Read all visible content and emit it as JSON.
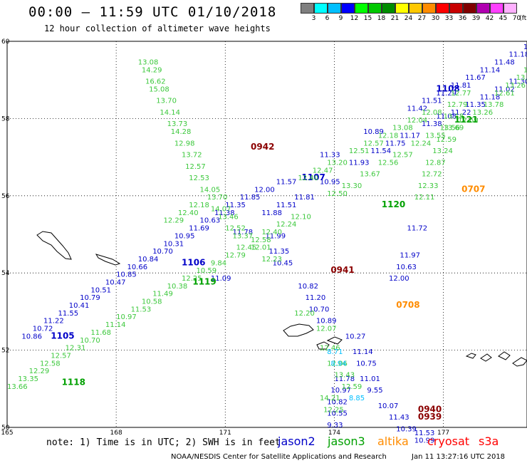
{
  "title": "00:00 – 11:59 UTC 01/10/2018",
  "subtitle": "12 hour collection of altimeter wave heights",
  "legend": {
    "unit": "(ft)",
    "bins": [
      {
        "label": "3",
        "color": "#7f7f7f"
      },
      {
        "label": "6",
        "color": "#00ffff"
      },
      {
        "label": "9",
        "color": "#00bfff"
      },
      {
        "label": "12",
        "color": "#0000ff"
      },
      {
        "label": "15",
        "color": "#00ff00"
      },
      {
        "label": "18",
        "color": "#00c800"
      },
      {
        "label": "21",
        "color": "#008c00"
      },
      {
        "label": "24",
        "color": "#ffff00"
      },
      {
        "label": "27",
        "color": "#ffc800"
      },
      {
        "label": "30",
        "color": "#ff8c00"
      },
      {
        "label": "33",
        "color": "#ff0000"
      },
      {
        "label": "36",
        "color": "#c80000"
      },
      {
        "label": "39",
        "color": "#800000"
      },
      {
        "label": "42",
        "color": "#b000b0"
      },
      {
        "label": "45",
        "color": "#ff40ff"
      },
      {
        "label": "70",
        "color": "#ffb0ff"
      }
    ]
  },
  "map": {
    "lon_range": [
      165,
      179.3
    ],
    "lat_range": [
      50,
      60
    ],
    "lon_ticks": [
      {
        "value": 165,
        "label": "165"
      },
      {
        "value": 168,
        "label": "168"
      },
      {
        "value": 171,
        "label": "171"
      },
      {
        "value": 174,
        "label": "174"
      },
      {
        "value": 177,
        "label": "177"
      }
    ],
    "lat_ticks": [
      {
        "value": 50,
        "label": "50"
      },
      {
        "value": 52,
        "label": "52"
      },
      {
        "value": 54,
        "label": "54"
      },
      {
        "value": 56,
        "label": "56"
      },
      {
        "value": 58,
        "label": "58"
      },
      {
        "value": 60,
        "label": "60"
      }
    ]
  },
  "satellites": {
    "jason2": {
      "label": "jason2",
      "color": "#0000c8"
    },
    "jason3": {
      "label": "jason3",
      "color": "#00a000"
    },
    "altika": {
      "label": "altika",
      "color": "#ff8c00"
    },
    "cryosat": {
      "label": "cryosat",
      "color": "#ff0000"
    },
    "s3a": {
      "label": "s3a",
      "color": "#ff0000"
    }
  },
  "chart_data": {
    "type": "scatter",
    "units": "ft",
    "tracks": [
      {
        "satellite": "jason2",
        "pass_time": "1105",
        "time_label_lonlat": [
          166.2,
          52.3
        ],
        "points": [
          [
            165.4,
            52.3,
            "10.86"
          ],
          [
            165.7,
            52.5,
            "10.72"
          ],
          [
            166.0,
            52.7,
            "11.22"
          ],
          [
            166.4,
            52.9,
            "11.55"
          ],
          [
            166.7,
            53.1,
            "10.41"
          ],
          [
            167.0,
            53.3,
            "10.79"
          ],
          [
            167.3,
            53.5,
            "10.51"
          ],
          [
            167.7,
            53.7,
            "10.47"
          ],
          [
            168.0,
            53.9,
            "10.85"
          ],
          [
            168.3,
            54.1,
            "10.66"
          ],
          [
            168.6,
            54.3,
            "10.84"
          ],
          [
            169.0,
            54.5,
            "10.70"
          ],
          [
            169.3,
            54.7,
            "10.31"
          ],
          [
            169.6,
            54.9,
            "10.95"
          ],
          [
            170.0,
            55.1,
            "11.69"
          ],
          [
            170.3,
            55.3,
            "10.63"
          ],
          [
            170.7,
            55.5,
            "11.38"
          ],
          [
            171.0,
            55.7,
            "11.35"
          ],
          [
            171.4,
            55.9,
            "11.85"
          ],
          [
            171.8,
            56.1,
            "12.00"
          ]
        ]
      },
      {
        "satellite": "jason2",
        "pass_time": "1107",
        "time_label_lonlat": [
          173.1,
          56.4
        ],
        "points": [
          [
            172.4,
            56.3,
            "11.57"
          ],
          [
            173.6,
            57.0,
            "11.33"
          ],
          [
            174.8,
            57.6,
            "10.89"
          ],
          [
            176.0,
            58.2,
            "11.42"
          ],
          [
            176.4,
            58.4,
            "11.51"
          ],
          [
            176.8,
            58.6,
            "11.29"
          ],
          [
            177.2,
            58.8,
            "11.81"
          ],
          [
            177.6,
            59.0,
            "11.67"
          ],
          [
            178.0,
            59.2,
            "11.14"
          ],
          [
            178.4,
            59.4,
            "11.48"
          ],
          [
            178.8,
            59.6,
            "11.18"
          ],
          [
            179.2,
            59.8,
            "11.77"
          ]
        ]
      },
      {
        "satellite": "jason2",
        "pass_time": "1106",
        "time_label_lonlat": [
          169.8,
          54.2
        ],
        "points": [
          [
            170.6,
            53.8,
            "11.09"
          ],
          [
            171.2,
            55.0,
            "11.78"
          ],
          [
            172.0,
            55.5,
            "11.88"
          ],
          [
            172.4,
            55.7,
            "11.51"
          ],
          [
            172.9,
            55.9,
            "11.81"
          ],
          [
            173.6,
            56.3,
            "10.95"
          ],
          [
            174.4,
            56.8,
            "11.93"
          ],
          [
            175.0,
            57.1,
            "11.54"
          ],
          [
            175.4,
            57.3,
            "11.75"
          ],
          [
            175.8,
            57.5,
            "11.17"
          ],
          [
            176.4,
            57.8,
            "11.38"
          ],
          [
            176.8,
            58.0,
            "11.08"
          ],
          [
            177.2,
            58.1,
            "11.22"
          ],
          [
            177.6,
            58.3,
            "11.35"
          ],
          [
            178.0,
            58.5,
            "11.18"
          ],
          [
            178.4,
            58.7,
            "11.02"
          ],
          [
            178.8,
            58.9,
            "11.30"
          ]
        ]
      },
      {
        "satellite": "jason2",
        "pass_time": "1108",
        "time_label_lonlat": [
          176.8,
          58.7
        ],
        "points": [
          [
            172.1,
            54.9,
            "11.99"
          ],
          [
            172.2,
            54.5,
            "11.35"
          ],
          [
            172.3,
            54.2,
            "10.45"
          ],
          [
            173.0,
            53.6,
            "10.82"
          ],
          [
            173.2,
            53.3,
            "11.20"
          ],
          [
            173.3,
            53.0,
            "10.70"
          ],
          [
            173.5,
            52.7,
            "10.89"
          ],
          [
            174.3,
            52.3,
            "10.27"
          ],
          [
            174.5,
            51.9,
            "11.14"
          ],
          [
            174.6,
            51.6,
            "10.75"
          ],
          [
            174.7,
            51.2,
            "11.01"
          ],
          [
            174.9,
            50.9,
            "9.55"
          ],
          [
            175.2,
            50.5,
            "10.07"
          ],
          [
            175.5,
            50.2,
            "11.43"
          ],
          [
            175.7,
            49.9,
            "10.39"
          ]
        ]
      },
      {
        "satellite": "jason2",
        "pass_time": "",
        "time_label_lonlat": null,
        "points": [
          [
            174.0,
            51.2,
            "11.78"
          ],
          [
            173.9,
            50.9,
            "10.97"
          ],
          [
            173.8,
            50.6,
            "10.82"
          ],
          [
            173.8,
            50.3,
            "10.55"
          ],
          [
            173.8,
            50.0,
            "9.33"
          ],
          [
            176.2,
            49.8,
            "11.53"
          ],
          [
            176.2,
            49.6,
            "10.99"
          ],
          [
            175.5,
            53.8,
            "12.00"
          ],
          [
            175.7,
            54.1,
            "10.63"
          ],
          [
            175.8,
            54.4,
            "11.97"
          ],
          [
            176.0,
            55.1,
            "11.72"
          ]
        ]
      },
      {
        "satellite": "jason3",
        "pass_time": "1119",
        "time_label_lonlat": [
          170.1,
          53.7
        ],
        "points": [
          [
            165.0,
            51.0,
            "13.66"
          ],
          [
            165.3,
            51.2,
            "13.35"
          ],
          [
            165.6,
            51.4,
            "12.29"
          ],
          [
            165.9,
            51.6,
            "12.58"
          ],
          [
            166.2,
            51.8,
            "12.57"
          ],
          [
            166.6,
            52.0,
            "12.31"
          ],
          [
            167.0,
            52.2,
            "10.70"
          ],
          [
            167.3,
            52.4,
            "11.68"
          ],
          [
            167.7,
            52.6,
            "11.14"
          ],
          [
            168.0,
            52.8,
            "10.97"
          ],
          [
            168.4,
            53.0,
            "11.53"
          ],
          [
            168.7,
            53.2,
            "10.58"
          ],
          [
            169.0,
            53.4,
            "11.49"
          ],
          [
            169.4,
            53.6,
            "10.38"
          ],
          [
            169.8,
            53.8,
            "12.25"
          ],
          [
            170.2,
            54.0,
            "10.59"
          ],
          [
            170.6,
            54.2,
            "9.84"
          ],
          [
            171.0,
            54.4,
            "12.79"
          ],
          [
            171.3,
            54.6,
            "12.45"
          ],
          [
            171.7,
            54.8,
            "12.58"
          ],
          [
            172.0,
            55.0,
            "12.40"
          ],
          [
            172.4,
            55.2,
            "12.24"
          ],
          [
            172.8,
            55.4,
            "12.10"
          ]
        ]
      },
      {
        "satellite": "jason3",
        "pass_time": "1118",
        "time_label_lonlat": [
          166.5,
          51.1
        ],
        "points": [
          [
            169.3,
            55.3,
            "12.29"
          ],
          [
            169.7,
            55.5,
            "12.40"
          ],
          [
            170.0,
            55.7,
            "12.18"
          ],
          [
            173.0,
            56.4,
            "12.40"
          ],
          [
            173.4,
            56.6,
            "12.47"
          ],
          [
            173.8,
            56.8,
            "13.20"
          ],
          [
            174.4,
            57.1,
            "12.51"
          ],
          [
            174.8,
            57.3,
            "12.57"
          ],
          [
            175.2,
            57.5,
            "12.18"
          ],
          [
            175.6,
            57.7,
            "13.08"
          ],
          [
            176.0,
            57.9,
            "12.04"
          ],
          [
            176.4,
            58.1,
            "12.08"
          ]
        ]
      },
      {
        "satellite": "jason3",
        "pass_time": "1120",
        "time_label_lonlat": [
          175.3,
          55.7
        ],
        "points": [
          [
            173.8,
            56.0,
            "12.50"
          ],
          [
            174.2,
            56.2,
            "13.30"
          ],
          [
            174.7,
            56.5,
            "13.67"
          ],
          [
            175.2,
            56.8,
            "12.56"
          ],
          [
            175.6,
            57.0,
            "12.57"
          ],
          [
            176.1,
            57.3,
            "12.24"
          ],
          [
            176.5,
            57.5,
            "13.55"
          ],
          [
            177.0,
            57.7,
            "13.69"
          ],
          [
            177.4,
            57.9,
            "12.69"
          ],
          [
            177.8,
            58.1,
            "13.26"
          ],
          [
            178.1,
            58.3,
            "13.78"
          ],
          [
            178.4,
            58.6,
            "12.61"
          ],
          [
            178.7,
            58.8,
            "13.26"
          ],
          [
            179.0,
            59.0,
            "13.56"
          ],
          [
            179.2,
            59.2,
            "13.70"
          ],
          [
            179.3,
            59.4,
            "13.82"
          ],
          [
            179.3,
            59.6,
            "14.08"
          ]
        ]
      },
      {
        "satellite": "jason3",
        "pass_time": "1121",
        "time_label_lonlat": [
          177.3,
          57.9
        ],
        "points": [
          [
            168.6,
            59.4,
            "13.08"
          ],
          [
            168.7,
            59.2,
            "14.29"
          ],
          [
            168.8,
            58.9,
            "16.62"
          ],
          [
            168.9,
            58.7,
            "15.08"
          ],
          [
            169.1,
            58.4,
            "13.70"
          ],
          [
            169.2,
            58.1,
            "14.14"
          ],
          [
            169.4,
            57.8,
            "13.73"
          ],
          [
            169.5,
            57.6,
            "14.28"
          ],
          [
            169.6,
            57.3,
            "12.98"
          ],
          [
            169.8,
            57.0,
            "13.72"
          ],
          [
            169.9,
            56.7,
            "12.57"
          ],
          [
            170.0,
            56.4,
            "12.53"
          ],
          [
            170.3,
            56.1,
            "14.05"
          ],
          [
            170.5,
            55.9,
            "13.70"
          ],
          [
            170.6,
            55.6,
            "14.07"
          ],
          [
            170.8,
            55.4,
            "13.46"
          ],
          [
            171.0,
            55.1,
            "12.52"
          ],
          [
            171.2,
            54.9,
            "13.37"
          ],
          [
            171.7,
            54.6,
            "12.01"
          ],
          [
            172.0,
            54.3,
            "12.23"
          ],
          [
            172.9,
            52.9,
            "12.20"
          ],
          [
            173.5,
            52.5,
            "12.07"
          ],
          [
            173.6,
            52.0,
            "12.46"
          ],
          [
            173.8,
            51.6,
            "12.06"
          ],
          [
            174.0,
            51.3,
            "13.43"
          ],
          [
            174.2,
            51.0,
            "12.59"
          ],
          [
            173.6,
            50.7,
            "14.21"
          ],
          [
            173.7,
            50.4,
            "12.25"
          ],
          [
            176.2,
            55.9,
            "12.11"
          ],
          [
            176.3,
            56.2,
            "12.33"
          ],
          [
            176.4,
            56.5,
            "12.72"
          ],
          [
            176.5,
            56.8,
            "12.87"
          ],
          [
            176.7,
            57.1,
            "13.24"
          ],
          [
            176.8,
            57.4,
            "12.59"
          ],
          [
            176.9,
            57.7,
            "13.56"
          ],
          [
            177.0,
            58.0,
            "13.18"
          ],
          [
            177.1,
            58.3,
            "12.79"
          ],
          [
            177.2,
            58.6,
            "12.77"
          ]
        ]
      },
      {
        "satellite": "altika",
        "pass_time": "0708",
        "time_label_lonlat": [
          175.7,
          53.1
        ],
        "points": []
      },
      {
        "satellite": "altika",
        "pass_time": "0707",
        "time_label_lonlat": [
          177.5,
          56.1
        ],
        "points": []
      },
      {
        "satellite": "cryosat",
        "pass_time": "0942",
        "time_label_lonlat": [
          171.7,
          57.2
        ],
        "points": []
      },
      {
        "satellite": "cryosat",
        "pass_time": "0941",
        "time_label_lonlat": [
          173.9,
          54.0
        ],
        "points": []
      },
      {
        "satellite": "cryosat",
        "pass_time": "0940",
        "time_label_lonlat": [
          176.3,
          50.4
        ],
        "points": []
      },
      {
        "satellite": "cryosat",
        "pass_time": "0939",
        "time_label_lonlat": [
          176.3,
          50.2
        ],
        "points": []
      },
      {
        "satellite": "s3a",
        "pass_time": "",
        "time_label_lonlat": null,
        "points": [
          [
            173.8,
            51.9,
            "8.71"
          ],
          [
            173.9,
            51.6,
            "8.94"
          ],
          [
            174.4,
            50.7,
            "8.85"
          ]
        ]
      }
    ]
  },
  "note": "note: 1) Time is in UTC; 2) SWH is in feet",
  "credit": "NOAA/NESDIS Center for Satellite Applications and Research",
  "credit_time": "Jan 11 13:27:16 UTC 2018"
}
